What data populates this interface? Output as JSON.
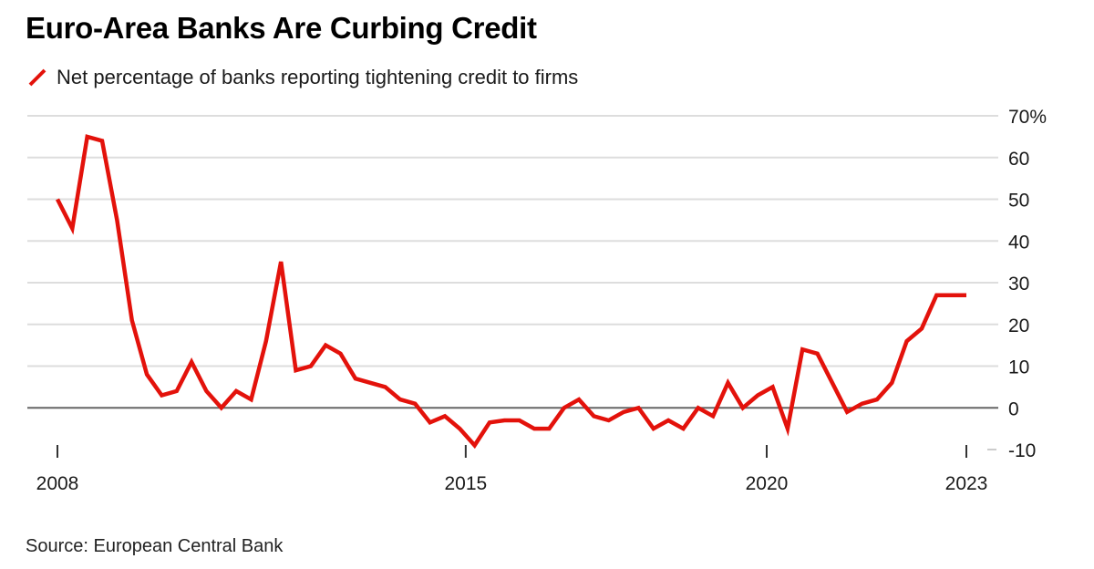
{
  "chart_data": {
    "type": "line",
    "title": "Euro-Area Banks Are Curbing Credit",
    "source": "Source: European Central Bank",
    "xlabel": "",
    "ylabel": "",
    "ylim": [
      -10,
      70
    ],
    "y_ticks": [
      70,
      60,
      50,
      40,
      30,
      20,
      10,
      0,
      -10
    ],
    "y_tick_labels": [
      "70%",
      "60",
      "50",
      "40",
      "30",
      "20",
      "10",
      "0",
      "-10"
    ],
    "y_axis_side": "right",
    "grid": true,
    "zero_line": true,
    "x_ticks": [
      {
        "label": "2008",
        "x": 2008.0
      },
      {
        "label": "2015",
        "x": 2014.85
      },
      {
        "label": "2020",
        "x": 2019.9
      },
      {
        "label": "2023",
        "x": 2023.25
      }
    ],
    "xlim": [
      2008.0,
      2023.25
    ],
    "legend_position": "top-left",
    "series": [
      {
        "name": "Net percentage of banks reporting tightening credit to firms",
        "color": "#e3120b",
        "x": [
          2008.0,
          2008.25,
          2008.5,
          2008.75,
          2009.0,
          2009.25,
          2009.5,
          2009.75,
          2010.0,
          2010.25,
          2010.5,
          2010.75,
          2011.0,
          2011.25,
          2011.5,
          2011.75,
          2012.0,
          2012.25,
          2012.5,
          2012.75,
          2013.0,
          2013.25,
          2013.5,
          2013.75,
          2014.0,
          2014.25,
          2014.5,
          2014.75,
          2015.0,
          2015.25,
          2015.5,
          2015.75,
          2016.0,
          2016.25,
          2016.5,
          2016.75,
          2017.0,
          2017.25,
          2017.5,
          2017.75,
          2018.0,
          2018.25,
          2018.5,
          2018.75,
          2019.0,
          2019.25,
          2019.5,
          2019.75,
          2020.0,
          2020.25,
          2020.5,
          2020.75,
          2021.0,
          2021.25,
          2021.5,
          2021.75,
          2022.0,
          2022.25,
          2022.5,
          2022.75,
          2023.0,
          2023.25
        ],
        "values": [
          50,
          43,
          65,
          64,
          45,
          21,
          8,
          3,
          4,
          11,
          4,
          0,
          4,
          2,
          16,
          35,
          9,
          10,
          15,
          13,
          7,
          6,
          5,
          2,
          1,
          -3.5,
          -2,
          -5,
          -9,
          -3.5,
          -3,
          -3,
          -5,
          -5,
          0,
          2,
          -2,
          -3,
          -1,
          0,
          -5,
          -3,
          -5,
          0,
          -2,
          6,
          0,
          3,
          5,
          -5,
          14,
          13,
          6,
          -1,
          1,
          2,
          6,
          16,
          19,
          27,
          27,
          27
        ]
      }
    ]
  }
}
